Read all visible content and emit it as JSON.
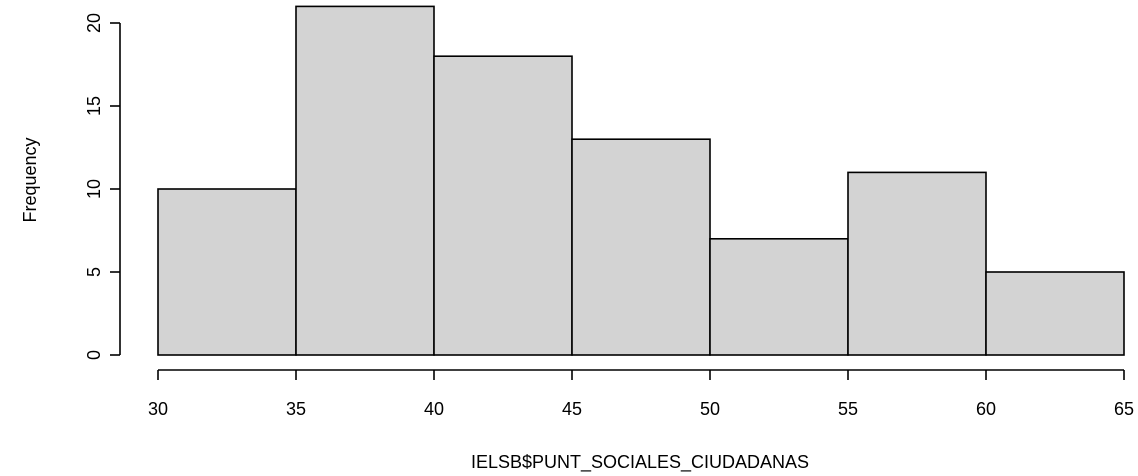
{
  "chart_data": {
    "type": "bar",
    "histogram": true,
    "title": "",
    "xlabel": "IELSB$PUNT_SOCIALES_CIUDADANAS",
    "ylabel": "Frequency",
    "bins": [
      {
        "start": 30,
        "end": 35,
        "count": 10
      },
      {
        "start": 35,
        "end": 40,
        "count": 21
      },
      {
        "start": 40,
        "end": 45,
        "count": 18
      },
      {
        "start": 45,
        "end": 50,
        "count": 13
      },
      {
        "start": 50,
        "end": 55,
        "count": 7
      },
      {
        "start": 55,
        "end": 60,
        "count": 11
      },
      {
        "start": 60,
        "end": 65,
        "count": 5
      }
    ],
    "xlim": [
      30,
      65
    ],
    "ylim": [
      0,
      20
    ],
    "x_ticks": [
      30,
      35,
      40,
      45,
      50,
      55,
      60,
      65
    ],
    "y_ticks": [
      0,
      5,
      10,
      15,
      20
    ],
    "grid": false,
    "bar_fill": "#d3d3d3",
    "bar_stroke": "#000000"
  }
}
